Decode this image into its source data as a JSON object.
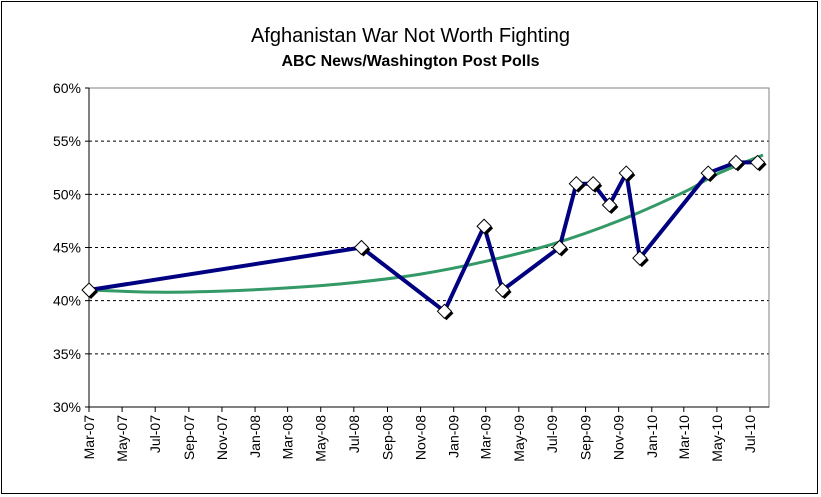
{
  "chart_data": {
    "type": "line",
    "title": "Afghanistan War Not Worth Fighting",
    "subtitle": "ABC News/Washington Post Polls",
    "xlabel": "",
    "ylabel": "",
    "ylim": [
      30,
      60
    ],
    "y_ticks": [
      "30%",
      "35%",
      "40%",
      "45%",
      "50%",
      "55%",
      "60%"
    ],
    "x_tick_labels": [
      "Mar-07",
      "May-07",
      "Jul-07",
      "Sep-07",
      "Nov-07",
      "Jan-08",
      "Mar-08",
      "May-08",
      "Jul-08",
      "Sep-08",
      "Nov-08",
      "Jan-09",
      "Mar-09",
      "May-09",
      "Jul-09",
      "Sep-09",
      "Nov-09",
      "Jan-10",
      "Mar-10",
      "May-10",
      "Jul-10"
    ],
    "xlim": [
      "2007-03-01",
      "2010-08-05"
    ],
    "grid": "horizontal dashed",
    "series": [
      {
        "style": "line-with-diamond-markers",
        "color": "#000080",
        "points": [
          {
            "date": "2007-03-01",
            "value": 41
          },
          {
            "date": "2008-07-15",
            "value": 45
          },
          {
            "date": "2008-12-15",
            "value": 39
          },
          {
            "date": "2009-02-26",
            "value": 47
          },
          {
            "date": "2009-04-01",
            "value": 41
          },
          {
            "date": "2009-07-15",
            "value": 45
          },
          {
            "date": "2009-08-15",
            "value": 51
          },
          {
            "date": "2009-09-15",
            "value": 51
          },
          {
            "date": "2009-10-15",
            "value": 49
          },
          {
            "date": "2009-11-15",
            "value": 52
          },
          {
            "date": "2009-12-10",
            "value": 44
          },
          {
            "date": "2010-04-15",
            "value": 52
          },
          {
            "date": "2010-06-05",
            "value": 53
          },
          {
            "date": "2010-07-15",
            "value": 53
          }
        ]
      },
      {
        "style": "trendline",
        "color": "#339966",
        "points": [
          {
            "date": "2007-03-01",
            "value": 41.0
          },
          {
            "date": "2007-07-01",
            "value": 40.8
          },
          {
            "date": "2007-11-01",
            "value": 40.9
          },
          {
            "date": "2008-03-01",
            "value": 41.2
          },
          {
            "date": "2008-07-01",
            "value": 41.7
          },
          {
            "date": "2008-11-01",
            "value": 42.5
          },
          {
            "date": "2009-03-01",
            "value": 43.7
          },
          {
            "date": "2009-07-01",
            "value": 45.3
          },
          {
            "date": "2009-11-01",
            "value": 47.5
          },
          {
            "date": "2010-03-01",
            "value": 50.2
          },
          {
            "date": "2010-05-01",
            "value": 51.9
          },
          {
            "date": "2010-07-25",
            "value": 53.7
          }
        ]
      }
    ]
  }
}
